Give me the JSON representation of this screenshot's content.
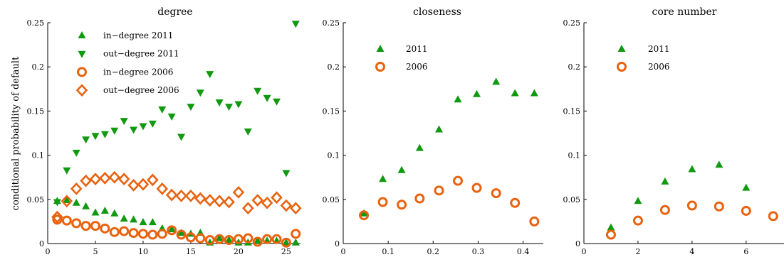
{
  "colors": {
    "green": "#119911",
    "orange": "#e8620f"
  },
  "ylabel": "conditional probability of default",
  "chart_data": [
    {
      "type": "scatter",
      "title": "degree",
      "xlim": [
        0,
        26.5
      ],
      "ylim": [
        0,
        0.25
      ],
      "xticks": [
        0,
        5,
        10,
        15,
        20,
        25
      ],
      "xtick_labels": [
        "0",
        "5",
        "10",
        "15",
        "20",
        "25"
      ],
      "yticks": [
        0,
        0.05,
        0.1,
        0.15,
        0.2,
        0.25
      ],
      "ytick_labels": [
        "0",
        "0.05",
        "0.1",
        "0.15",
        "0.2",
        "0.25"
      ],
      "legend_position": "top-left",
      "series": [
        {
          "name": "in−degree 2011",
          "marker": "triangle-up",
          "color": "#119911",
          "x": [
            1,
            2,
            3,
            4,
            5,
            6,
            7,
            8,
            9,
            10,
            11,
            12,
            13,
            14,
            15,
            16,
            17,
            18,
            19,
            20,
            21,
            22,
            23,
            24,
            25,
            26
          ],
          "y": [
            0.048,
            0.049,
            0.046,
            0.042,
            0.035,
            0.037,
            0.034,
            0.028,
            0.027,
            0.024,
            0.024,
            0.017,
            0.016,
            0.012,
            0.011,
            0.012,
            0.001,
            0.006,
            0.004,
            0.001,
            0.001,
            0.003,
            0.003,
            0.003,
            0.001,
            0.001
          ]
        },
        {
          "name": "out−degree 2011",
          "marker": "triangle-down",
          "color": "#119911",
          "x": [
            1,
            2,
            3,
            4,
            5,
            6,
            7,
            8,
            9,
            10,
            11,
            12,
            13,
            14,
            15,
            16,
            17,
            18,
            19,
            20,
            21,
            22,
            23,
            24,
            25,
            26
          ],
          "y": [
            0.047,
            0.083,
            0.103,
            0.118,
            0.122,
            0.124,
            0.128,
            0.139,
            0.129,
            0.133,
            0.136,
            0.152,
            0.144,
            0.121,
            0.155,
            0.171,
            0.192,
            0.16,
            0.155,
            0.158,
            0.127,
            0.173,
            0.165,
            0.161,
            0.08,
            0.249
          ]
        },
        {
          "name": "in−degree 2006",
          "marker": "circle",
          "color": "#e8620f",
          "x": [
            1,
            2,
            3,
            4,
            5,
            6,
            7,
            8,
            9,
            10,
            11,
            12,
            13,
            14,
            15,
            16,
            17,
            18,
            19,
            20,
            21,
            22,
            23,
            24,
            25,
            26
          ],
          "y": [
            0.027,
            0.026,
            0.023,
            0.02,
            0.02,
            0.017,
            0.013,
            0.014,
            0.012,
            0.011,
            0.01,
            0.011,
            0.015,
            0.01,
            0.007,
            0.006,
            0.004,
            0.005,
            0.004,
            0.005,
            0.006,
            0.002,
            0.005,
            0.005,
            0.001,
            0.011
          ]
        },
        {
          "name": "out−degree 2006",
          "marker": "diamond",
          "color": "#e8620f",
          "x": [
            1,
            2,
            3,
            4,
            5,
            6,
            7,
            8,
            9,
            10,
            11,
            12,
            13,
            14,
            15,
            16,
            17,
            18,
            19,
            20,
            21,
            22,
            23,
            24,
            25,
            26
          ],
          "y": [
            0.03,
            0.048,
            0.062,
            0.071,
            0.073,
            0.074,
            0.075,
            0.073,
            0.066,
            0.067,
            0.072,
            0.062,
            0.055,
            0.054,
            0.054,
            0.051,
            0.049,
            0.048,
            0.047,
            0.058,
            0.04,
            0.049,
            0.046,
            0.052,
            0.043,
            0.04
          ]
        }
      ]
    },
    {
      "type": "scatter",
      "title": "closeness",
      "xlim": [
        0,
        0.445
      ],
      "ylim": [
        0,
        0.25
      ],
      "xticks": [
        0,
        0.1,
        0.2,
        0.3,
        0.4
      ],
      "xtick_labels": [
        "0",
        "0.1",
        "0.2",
        "0.3",
        "0.4"
      ],
      "yticks": [
        0,
        0.05,
        0.1,
        0.15,
        0.2,
        0.25
      ],
      "ytick_labels": [
        "0",
        "0.05",
        "0.1",
        "0.15",
        "0.2",
        "0.25"
      ],
      "legend_position": "top-left",
      "series": [
        {
          "name": "2011",
          "marker": "triangle-up",
          "color": "#119911",
          "x": [
            0.046,
            0.088,
            0.13,
            0.17,
            0.213,
            0.255,
            0.297,
            0.34,
            0.382,
            0.425
          ],
          "y": [
            0.034,
            0.073,
            0.083,
            0.108,
            0.129,
            0.163,
            0.169,
            0.183,
            0.17,
            0.17
          ]
        },
        {
          "name": "2006",
          "marker": "circle",
          "color": "#e8620f",
          "x": [
            0.046,
            0.088,
            0.13,
            0.17,
            0.213,
            0.255,
            0.297,
            0.34,
            0.382,
            0.425
          ],
          "y": [
            0.032,
            0.047,
            0.044,
            0.051,
            0.06,
            0.071,
            0.063,
            0.057,
            0.046,
            0.025
          ]
        }
      ]
    },
    {
      "type": "scatter",
      "title": "core number",
      "xlim": [
        0,
        7.4
      ],
      "ylim": [
        0,
        0.25
      ],
      "xticks": [
        0,
        2,
        4,
        6
      ],
      "xtick_labels": [
        "0",
        "2",
        "4",
        "6"
      ],
      "yticks": [
        0,
        0.05,
        0.1,
        0.15,
        0.2,
        0.25
      ],
      "ytick_labels": [
        "0",
        "0.05",
        "0.1",
        "0.15",
        "0.2",
        "0.25"
      ],
      "legend_position": "top-left",
      "series": [
        {
          "name": "2011",
          "marker": "triangle-up",
          "color": "#119911",
          "x": [
            1,
            2,
            3,
            4,
            5,
            6
          ],
          "y": [
            0.018,
            0.048,
            0.07,
            0.084,
            0.089,
            0.063
          ]
        },
        {
          "name": "2006",
          "marker": "circle",
          "color": "#e8620f",
          "x": [
            1,
            2,
            3,
            4,
            5,
            6,
            7
          ],
          "y": [
            0.01,
            0.026,
            0.038,
            0.043,
            0.042,
            0.037,
            0.031
          ]
        }
      ]
    }
  ]
}
